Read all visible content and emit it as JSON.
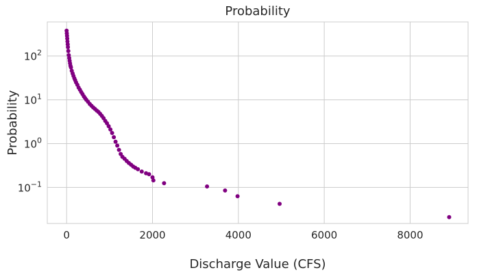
{
  "chart_data": {
    "type": "scatter",
    "title": "Probability",
    "xlabel": "Discharge Value (CFS)",
    "ylabel": "Probability",
    "x_scale": "linear",
    "y_scale": "log",
    "xlim": [
      -450,
      9350
    ],
    "ylim": [
      0.015,
      600
    ],
    "x_ticks": [
      0,
      2000,
      4000,
      6000,
      8000
    ],
    "x_tick_labels": [
      "0",
      "2000",
      "4000",
      "6000",
      "8000"
    ],
    "y_ticks": [
      0.1,
      1,
      10,
      100
    ],
    "y_tick_labels": [
      {
        "base": "10",
        "exp": "−1"
      },
      {
        "base": "10",
        "exp": "0"
      },
      {
        "base": "10",
        "exp": "1"
      },
      {
        "base": "10",
        "exp": "2"
      }
    ],
    "grid": true,
    "marker_color": "#800080",
    "series": [
      {
        "points": [
          [
            0,
            380
          ],
          [
            5,
            330
          ],
          [
            10,
            290
          ],
          [
            15,
            250
          ],
          [
            20,
            215
          ],
          [
            25,
            185
          ],
          [
            30,
            160
          ],
          [
            40,
            130
          ],
          [
            50,
            105
          ],
          [
            60,
            90
          ],
          [
            70,
            78
          ],
          [
            80,
            68
          ],
          [
            90,
            60
          ],
          [
            100,
            55
          ],
          [
            120,
            46
          ],
          [
            140,
            40
          ],
          [
            160,
            35
          ],
          [
            180,
            31
          ],
          [
            200,
            28
          ],
          [
            220,
            25
          ],
          [
            250,
            22
          ],
          [
            280,
            19
          ],
          [
            310,
            17
          ],
          [
            340,
            15
          ],
          [
            370,
            13.5
          ],
          [
            400,
            12
          ],
          [
            430,
            11
          ],
          [
            460,
            10
          ],
          [
            500,
            9
          ],
          [
            540,
            8
          ],
          [
            580,
            7.3
          ],
          [
            620,
            6.7
          ],
          [
            660,
            6.2
          ],
          [
            700,
            5.7
          ],
          [
            740,
            5.3
          ],
          [
            780,
            4.8
          ],
          [
            820,
            4.3
          ],
          [
            860,
            3.8
          ],
          [
            900,
            3.3
          ],
          [
            940,
            2.9
          ],
          [
            980,
            2.5
          ],
          [
            1020,
            2.1
          ],
          [
            1060,
            1.75
          ],
          [
            1100,
            1.4
          ],
          [
            1140,
            1.1
          ],
          [
            1180,
            0.9
          ],
          [
            1220,
            0.72
          ],
          [
            1260,
            0.58
          ],
          [
            1300,
            0.5
          ],
          [
            1350,
            0.45
          ],
          [
            1400,
            0.4
          ],
          [
            1450,
            0.36
          ],
          [
            1500,
            0.33
          ],
          [
            1550,
            0.3
          ],
          [
            1600,
            0.28
          ],
          [
            1660,
            0.26
          ],
          [
            1750,
            0.23
          ],
          [
            1850,
            0.21
          ],
          [
            1920,
            0.2
          ],
          [
            2000,
            0.17
          ],
          [
            2020,
            0.145
          ],
          [
            2270,
            0.125
          ],
          [
            3270,
            0.105
          ],
          [
            3690,
            0.085
          ],
          [
            3980,
            0.063
          ],
          [
            4960,
            0.042
          ],
          [
            8910,
            0.021
          ]
        ]
      }
    ]
  }
}
